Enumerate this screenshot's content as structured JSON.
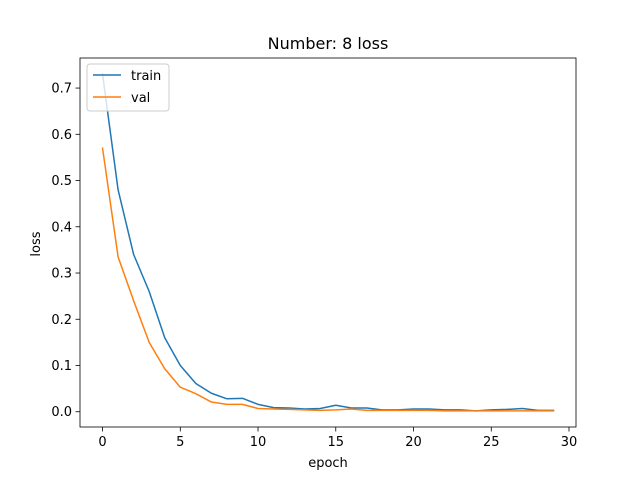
{
  "chart_data": {
    "type": "line",
    "title": "Number: 8 loss",
    "xlabel": "epoch",
    "ylabel": "loss",
    "xlim": [
      -1.45,
      30.45
    ],
    "ylim": [
      -0.033,
      0.765
    ],
    "xticks": [
      0,
      5,
      10,
      15,
      20,
      25,
      30
    ],
    "yticks": [
      0.0,
      0.1,
      0.2,
      0.3,
      0.4,
      0.5,
      0.6,
      0.7
    ],
    "grid": false,
    "legend_position": "top-left",
    "x": [
      0,
      1,
      2,
      3,
      4,
      5,
      6,
      7,
      8,
      9,
      10,
      11,
      12,
      13,
      14,
      15,
      16,
      17,
      18,
      19,
      20,
      21,
      22,
      23,
      24,
      25,
      26,
      27,
      28,
      29
    ],
    "series": [
      {
        "name": "train",
        "color": "#1f77b4",
        "values": [
          0.73,
          0.48,
          0.34,
          0.26,
          0.16,
          0.1,
          0.061,
          0.04,
          0.028,
          0.029,
          0.016,
          0.009,
          0.008,
          0.006,
          0.007,
          0.014,
          0.008,
          0.008,
          0.004,
          0.004,
          0.006,
          0.006,
          0.004,
          0.004,
          0.002,
          0.004,
          0.005,
          0.007,
          0.003,
          0.003
        ]
      },
      {
        "name": "val",
        "color": "#ff7f0e",
        "values": [
          0.57,
          0.335,
          0.24,
          0.15,
          0.093,
          0.053,
          0.039,
          0.021,
          0.016,
          0.016,
          0.007,
          0.006,
          0.005,
          0.004,
          0.003,
          0.004,
          0.006,
          0.003,
          0.003,
          0.003,
          0.003,
          0.003,
          0.002,
          0.002,
          0.002,
          0.002,
          0.002,
          0.002,
          0.002,
          0.002
        ]
      }
    ]
  }
}
